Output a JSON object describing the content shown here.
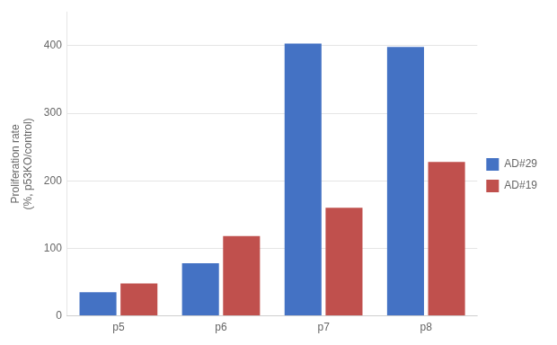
{
  "chart_data": {
    "type": "bar",
    "categories": [
      "p5",
      "p6",
      "p7",
      "p8"
    ],
    "series": [
      {
        "name": "AD#29",
        "color": "#4472C4",
        "values": [
          35,
          78,
          403,
          398
        ]
      },
      {
        "name": "AD#19",
        "color": "#C0504D",
        "values": [
          48,
          118,
          160,
          228
        ]
      }
    ],
    "ylabel": "Proliferation rate\n(%, p53KO/control)",
    "ylim": [
      0,
      450
    ],
    "yticks": [
      0,
      100,
      200,
      300,
      400
    ],
    "grid": true,
    "legend": "right"
  }
}
